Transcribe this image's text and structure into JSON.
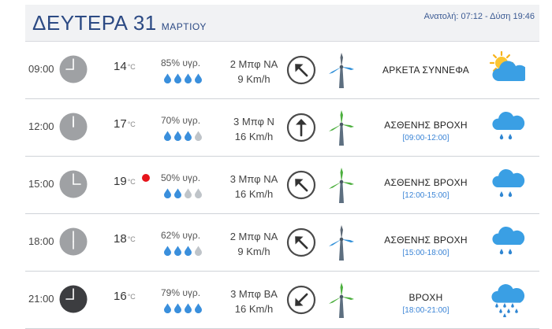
{
  "header": {
    "day_title": "ΔΕΥΤΕΡΑ 31",
    "month": "ΜΑΡΤΙΟΥ",
    "sun_info": "Ανατολή: 07:12 - Δύση 19:46"
  },
  "colors": {
    "title": "#2c4a84",
    "rain_range": "#3a84d6",
    "drop_filled": "#3a8fdc",
    "drop_empty": "#bfc4c9",
    "cloud_gray": "#3aa0e0",
    "alert": "#e6141b",
    "clock_day": "#9fa1a4",
    "clock_night": "#3c3d40"
  },
  "rows": [
    {
      "time": "09:00",
      "temp": "14",
      "temp_unit": "°C",
      "humidity": "85% υγρ.",
      "drops_filled": 4,
      "wind_bft": "2 Μπφ ΝΑ",
      "wind_speed": "9 Km/h",
      "wind_dir_deg": -45,
      "condition": "ΑΡΚΕΤΑ ΣΥΝΝΕΦΑ",
      "rain_range": "",
      "weather_icon": "partly-cloudy-icon",
      "night": false,
      "alert": false,
      "clock_hour": 9
    },
    {
      "time": "12:00",
      "temp": "17",
      "temp_unit": "°C",
      "humidity": "70% υγρ.",
      "drops_filled": 3,
      "wind_bft": "3 Μπφ Ν",
      "wind_speed": "16 Km/h",
      "wind_dir_deg": 0,
      "condition": "ΑΣΘΕΝΗΣ ΒΡΟΧΗ",
      "rain_range": "[09:00-12:00]",
      "weather_icon": "light-rain-icon",
      "night": false,
      "alert": false,
      "clock_hour": 12
    },
    {
      "time": "15:00",
      "temp": "19",
      "temp_unit": "°C",
      "humidity": "50% υγρ.",
      "drops_filled": 2,
      "wind_bft": "3 Μπφ ΝΑ",
      "wind_speed": "16 Km/h",
      "wind_dir_deg": -45,
      "condition": "ΑΣΘΕΝΗΣ ΒΡΟΧΗ",
      "rain_range": "[12:00-15:00]",
      "weather_icon": "light-rain-icon",
      "night": false,
      "alert": true,
      "clock_hour": 3
    },
    {
      "time": "18:00",
      "temp": "18",
      "temp_unit": "°C",
      "humidity": "62% υγρ.",
      "drops_filled": 3,
      "wind_bft": "2 Μπφ ΝΑ",
      "wind_speed": "9 Km/h",
      "wind_dir_deg": -45,
      "condition": "ΑΣΘΕΝΗΣ ΒΡΟΧΗ",
      "rain_range": "[15:00-18:00]",
      "weather_icon": "light-rain-icon",
      "night": false,
      "alert": false,
      "clock_hour": 6
    },
    {
      "time": "21:00",
      "temp": "16",
      "temp_unit": "°C",
      "humidity": "79% υγρ.",
      "drops_filled": 4,
      "wind_bft": "3 Μπφ ΒΑ",
      "wind_speed": "16 Km/h",
      "wind_dir_deg": -135,
      "condition": "ΒΡΟΧΗ",
      "rain_range": "[18:00-21:00]",
      "weather_icon": "rain-icon",
      "night": true,
      "alert": false,
      "clock_hour": 9
    }
  ]
}
